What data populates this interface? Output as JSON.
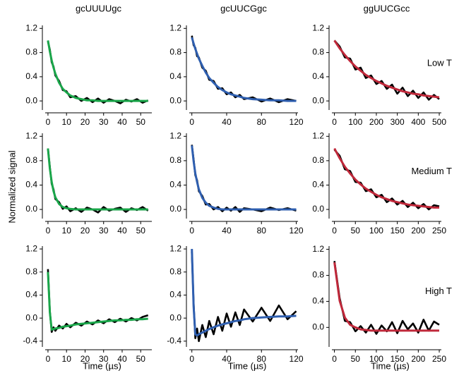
{
  "ylabel": "Normalized signal",
  "chart_data": [
    {
      "type": "line",
      "title": "gcUUUUgc",
      "x": [
        0,
        1,
        2,
        3,
        4,
        6,
        8,
        10,
        12,
        15,
        18,
        21,
        24,
        27,
        30,
        33,
        36,
        39,
        42,
        45,
        48,
        51,
        54
      ],
      "series": [
        {
          "color": "#000000",
          "values": [
            0.98,
            0.85,
            0.64,
            0.57,
            0.42,
            0.33,
            0.18,
            0.16,
            0.06,
            0.08,
            0.0,
            0.05,
            -0.02,
            0.04,
            -0.03,
            0.03,
            0.0,
            -0.04,
            0.02,
            -0.01,
            0.03,
            -0.03,
            0.01
          ]
        },
        {
          "color": "#1aa64a",
          "values": [
            1,
            0.82,
            0.67,
            0.55,
            0.45,
            0.3,
            0.2,
            0.14,
            0.09,
            0.05,
            0.03,
            0.01,
            0.01,
            0,
            0,
            0,
            0,
            0,
            0,
            0,
            0,
            0,
            0
          ]
        }
      ],
      "xlim": [
        -1.5,
        56
      ],
      "xticks": [
        0,
        10,
        20,
        30,
        40,
        50
      ],
      "ylim": [
        -0.15,
        1.25
      ],
      "yticks": [
        {
          "value": 0,
          "label": "0.0"
        },
        0.4,
        0.8,
        1.2
      ]
    },
    {
      "type": "line",
      "title": "gcUUCGgc",
      "x": [
        0,
        2,
        4,
        6,
        8,
        12,
        16,
        20,
        25,
        30,
        35,
        40,
        45,
        50,
        55,
        60,
        70,
        80,
        90,
        100,
        110,
        120
      ],
      "series": [
        {
          "color": "#000000",
          "values": [
            1.08,
            0.92,
            0.88,
            0.74,
            0.72,
            0.55,
            0.5,
            0.35,
            0.33,
            0.2,
            0.21,
            0.11,
            0.14,
            0.06,
            0.1,
            0.03,
            0.06,
            -0.01,
            0.04,
            -0.02,
            0.03,
            0.0
          ]
        },
        {
          "color": "#2f5fb0",
          "values": [
            1.05,
            0.95,
            0.86,
            0.78,
            0.7,
            0.58,
            0.47,
            0.38,
            0.3,
            0.23,
            0.18,
            0.14,
            0.11,
            0.09,
            0.07,
            0.05,
            0.03,
            0.02,
            0.01,
            0.01,
            0,
            0
          ]
        }
      ],
      "xlim": [
        -3,
        122
      ],
      "xticks": [
        0,
        40,
        80,
        120
      ],
      "ylim": [
        -0.15,
        1.25
      ],
      "yticks": [
        {
          "value": 0,
          "label": "0.0"
        },
        0.4,
        0.8,
        1.2
      ]
    },
    {
      "type": "line",
      "title": "ggUUCGcc",
      "annotation": "Low T",
      "x": [
        0,
        25,
        50,
        75,
        100,
        125,
        150,
        175,
        200,
        225,
        250,
        275,
        300,
        325,
        350,
        375,
        400,
        425,
        450,
        475,
        500
      ],
      "series": [
        {
          "color": "#000000",
          "values": [
            1.0,
            0.9,
            0.72,
            0.7,
            0.52,
            0.55,
            0.38,
            0.42,
            0.28,
            0.33,
            0.2,
            0.27,
            0.12,
            0.22,
            0.08,
            0.17,
            0.05,
            0.14,
            0.02,
            0.1,
            0.03
          ]
        },
        {
          "color": "#c0283a",
          "values": [
            1,
            0.87,
            0.76,
            0.66,
            0.57,
            0.5,
            0.43,
            0.38,
            0.33,
            0.29,
            0.25,
            0.22,
            0.19,
            0.16,
            0.14,
            0.12,
            0.11,
            0.09,
            0.08,
            0.07,
            0.06
          ]
        }
      ],
      "xlim": [
        -12,
        510
      ],
      "xticks": [
        0,
        100,
        200,
        300,
        400,
        500
      ],
      "ylim": [
        -0.15,
        1.25
      ],
      "yticks": [
        {
          "value": 0,
          "label": "0.0"
        },
        0.4,
        0.8,
        1.2
      ]
    },
    {
      "type": "line",
      "x": [
        0,
        1,
        2,
        3,
        4,
        6,
        8,
        10,
        12,
        15,
        18,
        21,
        24,
        27,
        30,
        33,
        36,
        39,
        42,
        45,
        48,
        51,
        54
      ],
      "series": [
        {
          "color": "#000000",
          "values": [
            1.0,
            0.7,
            0.42,
            0.33,
            0.17,
            0.12,
            0.01,
            0.05,
            -0.03,
            0.02,
            -0.04,
            0.03,
            0.0,
            -0.05,
            0.04,
            -0.02,
            0.01,
            0.03,
            -0.04,
            0.02,
            -0.01,
            0.04,
            -0.02
          ]
        },
        {
          "color": "#1aa64a",
          "values": [
            1,
            0.67,
            0.45,
            0.3,
            0.2,
            0.09,
            0.04,
            0.02,
            0.01,
            0,
            0,
            0,
            0,
            0,
            0,
            0,
            0,
            0,
            0,
            0,
            0,
            0,
            0
          ]
        }
      ],
      "xlim": [
        -1.5,
        56
      ],
      "xticks": [
        0,
        10,
        20,
        30,
        40,
        50
      ],
      "ylim": [
        -0.15,
        1.25
      ],
      "yticks": [
        {
          "value": 0,
          "label": "0.0"
        },
        0.4,
        0.8,
        1.2
      ]
    },
    {
      "type": "line",
      "x": [
        0,
        2,
        4,
        6,
        8,
        12,
        16,
        20,
        25,
        30,
        35,
        40,
        45,
        50,
        55,
        60,
        70,
        80,
        90,
        100,
        110,
        120
      ],
      "series": [
        {
          "color": "#000000",
          "values": [
            1.06,
            0.82,
            0.56,
            0.48,
            0.3,
            0.22,
            0.08,
            0.09,
            0.0,
            0.04,
            -0.03,
            0.03,
            -0.02,
            0.04,
            -0.04,
            0.02,
            0.0,
            -0.03,
            0.03,
            -0.01,
            0.02,
            -0.02
          ]
        },
        {
          "color": "#2f5fb0",
          "values": [
            1.05,
            0.79,
            0.59,
            0.45,
            0.33,
            0.19,
            0.11,
            0.06,
            0.03,
            0.01,
            0,
            0,
            0,
            0,
            0,
            0,
            0,
            0,
            0,
            0,
            0,
            0
          ]
        }
      ],
      "xlim": [
        -3,
        122
      ],
      "xticks": [
        0,
        40,
        80,
        120
      ],
      "ylim": [
        -0.15,
        1.25
      ],
      "yticks": [
        {
          "value": 0,
          "label": "0.0"
        },
        0.4,
        0.8,
        1.2
      ]
    },
    {
      "type": "line",
      "annotation": "Medium T",
      "x": [
        0,
        12.5,
        25,
        37.5,
        50,
        62.5,
        75,
        87.5,
        100,
        112.5,
        125,
        137.5,
        150,
        162.5,
        175,
        187.5,
        200,
        212.5,
        225,
        237.5,
        250
      ],
      "series": [
        {
          "color": "#000000",
          "values": [
            0.98,
            0.88,
            0.66,
            0.63,
            0.45,
            0.44,
            0.3,
            0.33,
            0.2,
            0.24,
            0.12,
            0.18,
            0.08,
            0.14,
            0.04,
            0.11,
            0.02,
            0.09,
            0.0,
            0.07,
            0.05
          ]
        },
        {
          "color": "#c0283a",
          "values": [
            1,
            0.84,
            0.7,
            0.59,
            0.49,
            0.41,
            0.34,
            0.29,
            0.24,
            0.2,
            0.17,
            0.14,
            0.12,
            0.1,
            0.08,
            0.07,
            0.06,
            0.05,
            0.04,
            0.03,
            0.03
          ]
        }
      ],
      "xlim": [
        -6,
        255
      ],
      "xticks": [
        0,
        50,
        100,
        150,
        200,
        250
      ],
      "ylim": [
        -0.15,
        1.25
      ],
      "yticks": [
        {
          "value": 0,
          "label": "0.0"
        },
        0.4,
        0.8,
        1.2
      ]
    },
    {
      "type": "line",
      "xlabel": "Time (µs)",
      "x": [
        0,
        1,
        2,
        3,
        4,
        6,
        8,
        10,
        12,
        15,
        18,
        21,
        24,
        27,
        30,
        33,
        36,
        39,
        42,
        45,
        48,
        51,
        54
      ],
      "series": [
        {
          "color": "#000000",
          "values": [
            0.85,
            0.12,
            -0.24,
            -0.16,
            -0.22,
            -0.13,
            -0.18,
            -0.1,
            -0.16,
            -0.08,
            -0.13,
            -0.06,
            -0.11,
            -0.04,
            -0.09,
            -0.02,
            -0.07,
            -0.01,
            -0.06,
            0.0,
            -0.04,
            0.02,
            0.05
          ]
        },
        {
          "color": "#1aa64a",
          "values": [
            0.8,
            0.1,
            -0.2,
            -0.19,
            -0.18,
            -0.17,
            -0.15,
            -0.14,
            -0.13,
            -0.11,
            -0.1,
            -0.09,
            -0.08,
            -0.07,
            -0.06,
            -0.05,
            -0.04,
            -0.04,
            -0.03,
            -0.03,
            -0.02,
            -0.02,
            -0.01
          ]
        }
      ],
      "xlim": [
        -1.5,
        56
      ],
      "xticks": [
        0,
        10,
        20,
        30,
        40,
        50
      ],
      "ylim": [
        -0.5,
        1.25
      ],
      "yticks": [
        -0.4,
        {
          "value": 0,
          "label": "0.0"
        },
        0.4,
        0.8,
        1.2
      ]
    },
    {
      "type": "line",
      "xlabel": "Time (µs)",
      "x": [
        0,
        2,
        4,
        6,
        8,
        12,
        16,
        20,
        25,
        30,
        35,
        40,
        45,
        50,
        55,
        60,
        70,
        80,
        90,
        100,
        110,
        120
      ],
      "series": [
        {
          "color": "#000000",
          "values": [
            1.15,
            0.25,
            -0.35,
            -0.18,
            -0.4,
            -0.12,
            -0.33,
            -0.05,
            -0.28,
            0.02,
            -0.22,
            0.08,
            -0.15,
            0.1,
            -0.12,
            0.15,
            -0.06,
            0.18,
            -0.05,
            0.22,
            -0.02,
            0.12
          ]
        },
        {
          "color": "#2f5fb0",
          "values": [
            1.2,
            0.2,
            -0.28,
            -0.3,
            -0.28,
            -0.25,
            -0.22,
            -0.19,
            -0.16,
            -0.13,
            -0.11,
            -0.09,
            -0.07,
            -0.05,
            -0.04,
            -0.02,
            0,
            0.01,
            0.02,
            0.03,
            0.03,
            0.04
          ]
        }
      ],
      "xlim": [
        -3,
        122
      ],
      "xticks": [
        0,
        40,
        80,
        120
      ],
      "ylim": [
        -0.5,
        1.25
      ],
      "yticks": [
        -0.4,
        {
          "value": 0,
          "label": "0.0"
        },
        0.4,
        0.8,
        1.2
      ]
    },
    {
      "type": "line",
      "annotation": "High T",
      "xlabel": "Time (µs)",
      "x": [
        0,
        12.5,
        25,
        37.5,
        50,
        62.5,
        75,
        87.5,
        100,
        112.5,
        125,
        137.5,
        150,
        162.5,
        175,
        187.5,
        200,
        212.5,
        225,
        237.5,
        250
      ],
      "series": [
        {
          "color": "#000000",
          "values": [
            1.02,
            0.45,
            0.1,
            0.08,
            -0.06,
            0.02,
            -0.08,
            0.04,
            -0.1,
            0.03,
            -0.06,
            0.08,
            -0.09,
            0.1,
            -0.03,
            0.06,
            -0.08,
            0.12,
            -0.05,
            0.09,
            0.04
          ]
        },
        {
          "color": "#c0283a",
          "values": [
            1.0,
            0.41,
            0.15,
            0.04,
            0.0,
            -0.03,
            -0.04,
            -0.05,
            -0.05,
            -0.05,
            -0.05,
            -0.05,
            -0.05,
            -0.05,
            -0.05,
            -0.05,
            -0.05,
            -0.05,
            -0.05,
            -0.05,
            -0.05
          ]
        }
      ],
      "xlim": [
        -6,
        255
      ],
      "xticks": [
        0,
        50,
        100,
        150,
        200,
        250
      ],
      "ylim": [
        -0.3,
        1.25
      ],
      "yticks": [
        {
          "value": 0,
          "label": "0.0"
        },
        0.4,
        0.8,
        1.2
      ]
    }
  ]
}
